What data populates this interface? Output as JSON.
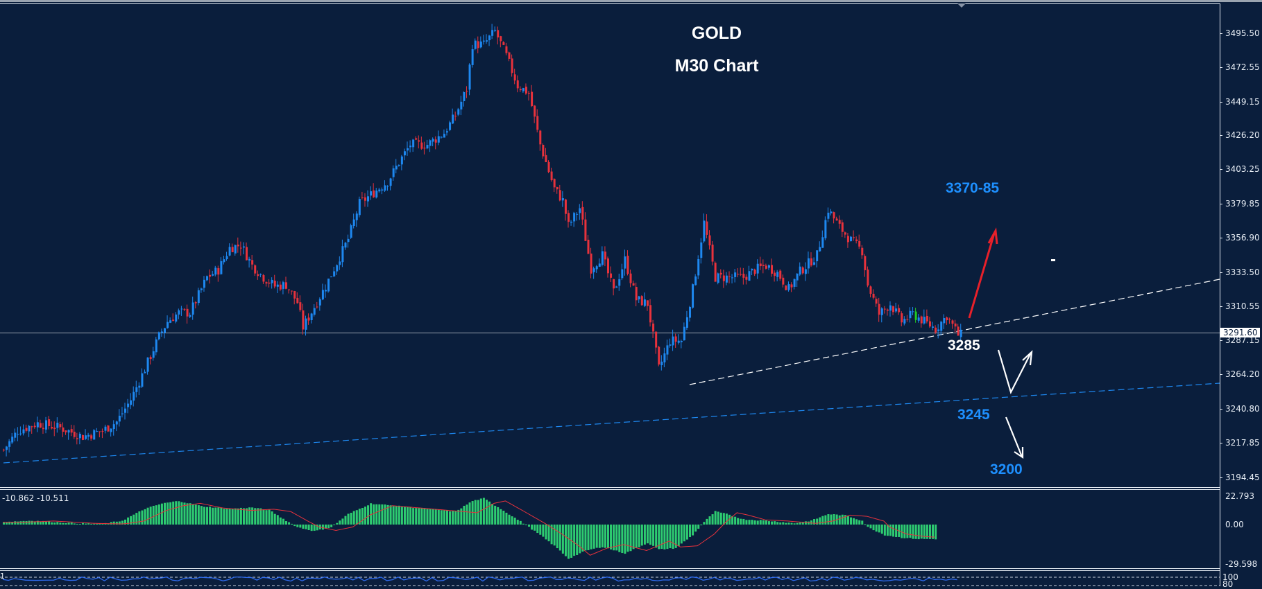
{
  "chart": {
    "title_line1": "GOLD",
    "title_line2": "M30 Chart",
    "symbol": "GOLD",
    "timeframe": "M30",
    "colors": {
      "background": "#0a1e3c",
      "bull_candle": "#1e88f0",
      "bear_candle": "#e8323c",
      "doji_candle": "#22cc22",
      "macd_histogram": "#2ecc71",
      "macd_signal": "#e8323c",
      "stochastic_line": "#2f6cf0",
      "axis_text": "#e8eef5",
      "annotation_blue": "#1e90ff",
      "annotation_white": "#ffffff",
      "annotation_red": "#e8202a",
      "current_price_line": "#9aa4b0"
    }
  },
  "price_axis": {
    "labels": [
      "3495.50",
      "3472.55",
      "3449.15",
      "3426.20",
      "3403.25",
      "3379.85",
      "3356.90",
      "3333.50",
      "3310.55",
      "3287.15",
      "3264.20",
      "3240.80",
      "3217.85",
      "3194.45"
    ],
    "current_price": "3291.60"
  },
  "macd_panel": {
    "header": "-10.862 -10.511",
    "axis_labels": [
      "22.793",
      "0.00",
      "-29.598"
    ]
  },
  "stoch_panel": {
    "left_label": "1",
    "axis_labels": [
      "100",
      "80"
    ]
  },
  "annotations": {
    "target_up": "3370-85",
    "support_1": "3285",
    "support_2": "3245",
    "target_down": "3200"
  },
  "chart_data": {
    "type": "candlestick",
    "title": "GOLD M30 Chart",
    "xlabel": "",
    "ylabel": "",
    "ylim": [
      3185,
      3505
    ],
    "grid": false,
    "candle_count": 346,
    "price_path_waypoints": [
      [
        0,
        3213
      ],
      [
        5,
        3226
      ],
      [
        12,
        3231
      ],
      [
        20,
        3228
      ],
      [
        28,
        3222
      ],
      [
        35,
        3226
      ],
      [
        40,
        3232
      ],
      [
        45,
        3247
      ],
      [
        50,
        3268
      ],
      [
        55,
        3290
      ],
      [
        58,
        3300
      ],
      [
        62,
        3306
      ],
      [
        66,
        3306
      ],
      [
        72,
        3330
      ],
      [
        76,
        3335
      ],
      [
        80,
        3350
      ],
      [
        84,
        3352
      ],
      [
        88,
        3338
      ],
      [
        92,
        3330
      ],
      [
        96,
        3324
      ],
      [
        100,
        3325
      ],
      [
        104,
        3313
      ],
      [
        106,
        3296
      ],
      [
        110,
        3310
      ],
      [
        114,
        3324
      ],
      [
        118,
        3340
      ],
      [
        122,
        3356
      ],
      [
        126,
        3380
      ],
      [
        130,
        3386
      ],
      [
        136,
        3395
      ],
      [
        140,
        3408
      ],
      [
        144,
        3420
      ],
      [
        150,
        3420
      ],
      [
        156,
        3428
      ],
      [
        160,
        3440
      ],
      [
        164,
        3458
      ],
      [
        166,
        3488
      ],
      [
        170,
        3488
      ],
      [
        174,
        3497
      ],
      [
        178,
        3480
      ],
      [
        182,
        3460
      ],
      [
        186,
        3455
      ],
      [
        190,
        3420
      ],
      [
        195,
        3390
      ],
      [
        198,
        3382
      ],
      [
        200,
        3365
      ],
      [
        204,
        3377
      ],
      [
        208,
        3336
      ],
      [
        212,
        3345
      ],
      [
        216,
        3320
      ],
      [
        220,
        3342
      ],
      [
        224,
        3315
      ],
      [
        228,
        3312
      ],
      [
        232,
        3268
      ],
      [
        236,
        3287
      ],
      [
        240,
        3287
      ],
      [
        244,
        3322
      ],
      [
        248,
        3367
      ],
      [
        252,
        3330
      ],
      [
        256,
        3330
      ],
      [
        262,
        3330
      ],
      [
        266,
        3335
      ],
      [
        270,
        3338
      ],
      [
        274,
        3333
      ],
      [
        278,
        3322
      ],
      [
        282,
        3334
      ],
      [
        288,
        3345
      ],
      [
        292,
        3376
      ],
      [
        296,
        3364
      ],
      [
        300,
        3355
      ],
      [
        304,
        3348
      ],
      [
        306,
        3325
      ],
      [
        310,
        3305
      ],
      [
        314,
        3312
      ],
      [
        318,
        3300
      ],
      [
        322,
        3305
      ],
      [
        326,
        3300
      ],
      [
        330,
        3295
      ],
      [
        334,
        3304
      ],
      [
        338,
        3291
      ]
    ],
    "last_price": 3291.6,
    "levels": {
      "resistance_target": "3370-85",
      "support_1": 3285,
      "support_2": 3245,
      "downside_target": 3200
    },
    "trendlines": [
      {
        "name": "rising support (white dashed)",
        "from_price": 3258,
        "to_price": 3330
      },
      {
        "name": "long-term support (blue dashed)",
        "from_price": 3208,
        "to_price": 3262
      }
    ],
    "macd": {
      "range": [
        -29.598,
        22.793
      ],
      "current": [
        -10.862,
        -10.511
      ],
      "histogram_waypoints": [
        [
          0,
          2
        ],
        [
          10,
          3
        ],
        [
          25,
          1
        ],
        [
          35,
          0.5
        ],
        [
          42,
          3
        ],
        [
          50,
          12
        ],
        [
          56,
          16
        ],
        [
          62,
          18
        ],
        [
          70,
          14
        ],
        [
          80,
          12
        ],
        [
          88,
          13
        ],
        [
          94,
          11
        ],
        [
          100,
          3
        ],
        [
          104,
          -2
        ],
        [
          110,
          -5
        ],
        [
          116,
          -2
        ],
        [
          122,
          8
        ],
        [
          130,
          16
        ],
        [
          140,
          14
        ],
        [
          150,
          12
        ],
        [
          160,
          10
        ],
        [
          166,
          18
        ],
        [
          170,
          20
        ],
        [
          176,
          12
        ],
        [
          184,
          1
        ],
        [
          190,
          -8
        ],
        [
          196,
          -18
        ],
        [
          200,
          -26
        ],
        [
          206,
          -20
        ],
        [
          212,
          -17
        ],
        [
          220,
          -22
        ],
        [
          228,
          -14
        ],
        [
          232,
          -19
        ],
        [
          238,
          -18
        ],
        [
          244,
          -8
        ],
        [
          248,
          2
        ],
        [
          252,
          10
        ],
        [
          256,
          8
        ],
        [
          262,
          4
        ],
        [
          270,
          3
        ],
        [
          280,
          1
        ],
        [
          286,
          3
        ],
        [
          292,
          8
        ],
        [
          298,
          7
        ],
        [
          304,
          3
        ],
        [
          306,
          -2
        ],
        [
          312,
          -8
        ],
        [
          318,
          -10
        ],
        [
          324,
          -11
        ],
        [
          330,
          -11
        ]
      ]
    },
    "stochastic": {
      "levels": [
        80,
        20
      ]
    }
  }
}
